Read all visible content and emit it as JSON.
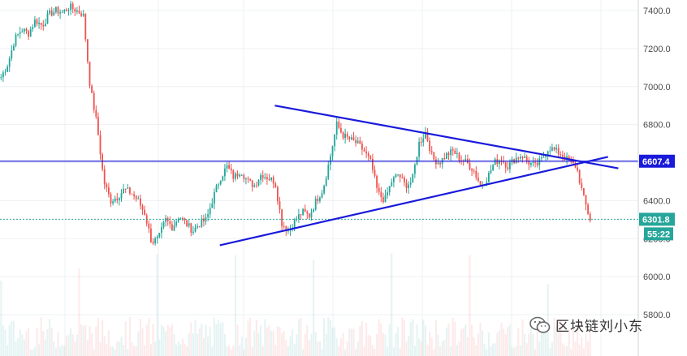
{
  "chart_data": {
    "type": "candlestick",
    "title": "",
    "xlabel": "",
    "ylabel": "",
    "ylim": [
      5700,
      7480
    ],
    "y_ticks": [
      "7400.0",
      "7200.0",
      "7000.0",
      "6800.0",
      "6600.0",
      "6400.0",
      "6200.0",
      "6000.0",
      "5800.0"
    ],
    "y_tick_values": [
      7400,
      7200,
      7000,
      6800,
      6600,
      6400,
      6200,
      6000,
      5800
    ],
    "grid": true,
    "up_color": "#26a69a",
    "down_color": "#ef5350",
    "closes": [
      7050,
      7120,
      7250,
      7300,
      7280,
      7350,
      7320,
      7380,
      7400,
      7390,
      7420,
      7400,
      7380,
      7000,
      6800,
      6500,
      6400,
      6420,
      6460,
      6440,
      6400,
      6330,
      6180,
      6200,
      6300,
      6260,
      6320,
      6280,
      6240,
      6280,
      6300,
      6420,
      6520,
      6580,
      6520,
      6560,
      6500,
      6480,
      6540,
      6520,
      6500,
      6280,
      6240,
      6300,
      6340,
      6320,
      6400,
      6460,
      6620,
      6800,
      6740,
      6720,
      6700,
      6660,
      6600,
      6440,
      6400,
      6500,
      6540,
      6480,
      6500,
      6700,
      6760,
      6620,
      6600,
      6640,
      6660,
      6620,
      6600,
      6560,
      6480,
      6520,
      6600,
      6620,
      6580,
      6620,
      6640,
      6600,
      6580,
      6620,
      6680,
      6660,
      6640,
      6600,
      6580,
      6420,
      6300
    ],
    "price_lines": [
      {
        "label": "6607.4",
        "value": 6607.4,
        "color": "#1a1adb"
      },
      {
        "label": "6301.8",
        "value": 6301.8,
        "color": "#26a69a"
      }
    ],
    "countdown": {
      "label": "55:22",
      "color": "#26a69a"
    },
    "trendlines": [
      {
        "from": [
          0.4,
          6900
        ],
        "to": [
          0.9,
          6570
        ],
        "color": "#1a1adb"
      },
      {
        "from": [
          0.32,
          6165
        ],
        "to": [
          0.885,
          6630
        ],
        "color": "#1a1adb"
      }
    ]
  },
  "watermark": {
    "text": "区块链刘小东",
    "icon": "wechat-icon"
  }
}
